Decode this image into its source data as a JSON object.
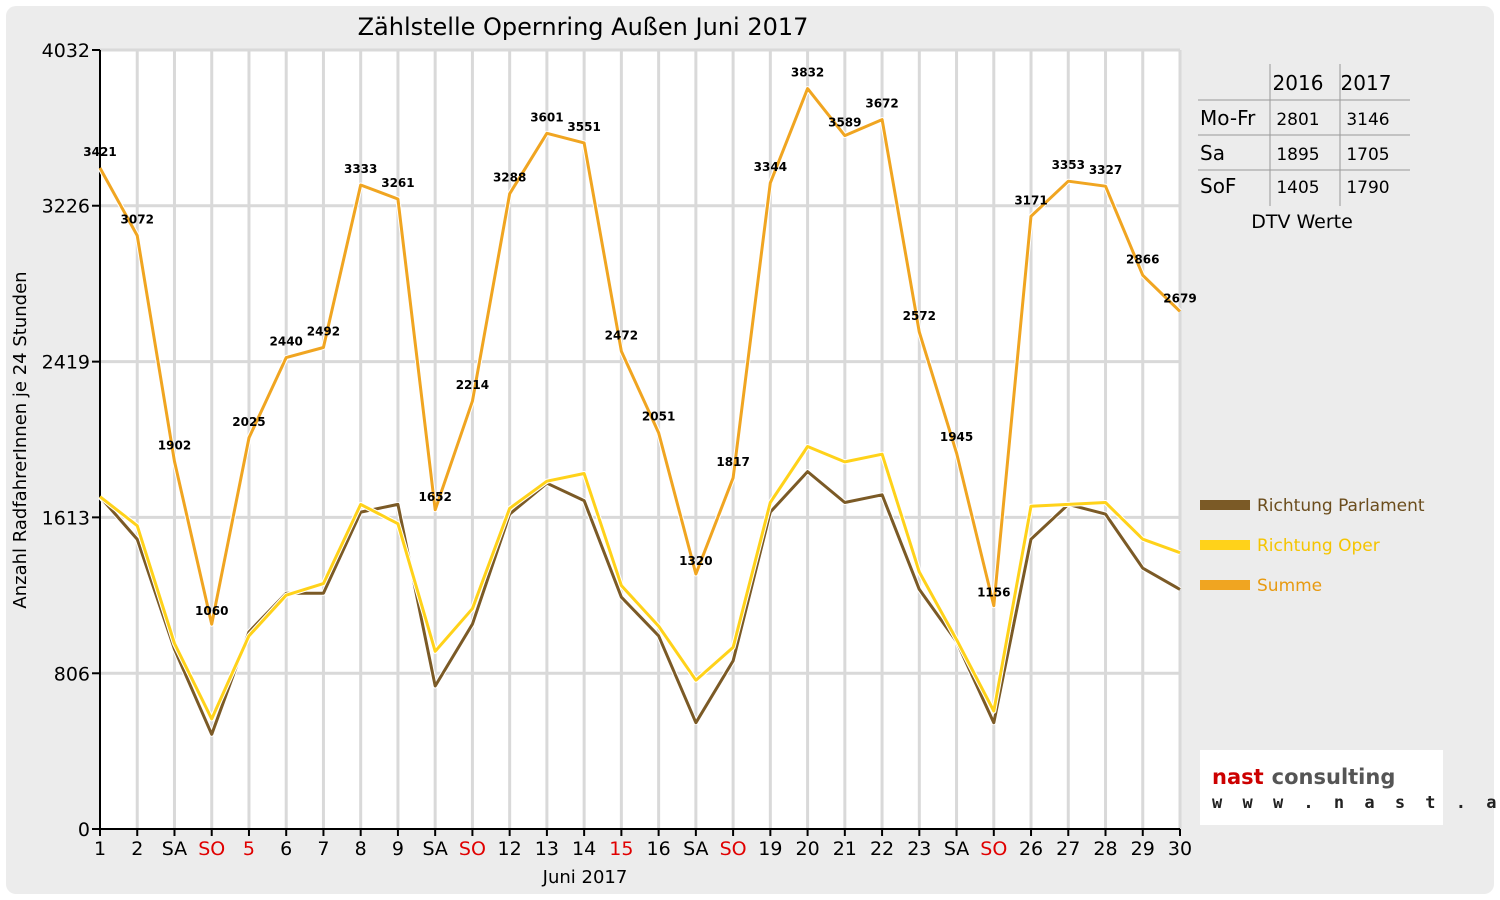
{
  "chart_data": {
    "type": "line",
    "title": "Zählstelle Opernring Außen Juni 2017",
    "xlabel": "Juni 2017",
    "ylabel": "Anzahl RadfahrerInnen je 24 Stunden",
    "yticks": [
      0,
      806,
      1613,
      2419,
      3226,
      4032
    ],
    "ylim": [
      0,
      4032
    ],
    "grid": true,
    "categories": [
      "1",
      "2",
      "SA",
      "SO",
      "5",
      "6",
      "7",
      "8",
      "9",
      "SA",
      "SO",
      "12",
      "13",
      "14",
      "15",
      "16",
      "SA",
      "SO",
      "19",
      "20",
      "21",
      "22",
      "23",
      "SA",
      "SO",
      "26",
      "27",
      "28",
      "29",
      "30"
    ],
    "red_categories": [
      3,
      4,
      10,
      14,
      17,
      24
    ],
    "series": [
      {
        "name": "Richtung Parlament",
        "color": "#7b5a26",
        "values": [
          1720,
          1500,
          930,
          490,
          1020,
          1220,
          1220,
          1640,
          1680,
          740,
          1060,
          1630,
          1790,
          1700,
          1200,
          1000,
          550,
          870,
          1640,
          1850,
          1690,
          1730,
          1240,
          970,
          550,
          1500,
          1680,
          1630,
          1350,
          1240
        ]
      },
      {
        "name": "Richtung Oper",
        "color": "#ffd21a",
        "values": [
          1720,
          1570,
          960,
          570,
          1000,
          1210,
          1270,
          1680,
          1580,
          920,
          1140,
          1660,
          1800,
          1840,
          1260,
          1050,
          770,
          940,
          1690,
          1980,
          1900,
          1940,
          1330,
          980,
          610,
          1670,
          1680,
          1690,
          1500,
          1430
        ]
      },
      {
        "name": "Summe",
        "color": "#f0a521",
        "values": [
          3421,
          3072,
          1902,
          1060,
          2025,
          2440,
          2492,
          3333,
          3261,
          1652,
          2214,
          3288,
          3601,
          3551,
          2472,
          2051,
          1320,
          1817,
          3344,
          3832,
          3589,
          3672,
          2572,
          1945,
          1156,
          3171,
          3353,
          3327,
          2866,
          2679
        ]
      }
    ],
    "legend_position": "right",
    "data_labels_series": "Summe"
  },
  "dtv_table": {
    "caption": "DTV Werte",
    "headers": [
      "",
      "2016",
      "2017"
    ],
    "rows": [
      [
        "Mo-Fr",
        "2801",
        "3146"
      ],
      [
        "Sa",
        "1895",
        "1705"
      ],
      [
        "SoF",
        "1405",
        "1790"
      ]
    ]
  },
  "logo": {
    "name_part1": "nast",
    "name_part2": "consulting",
    "url": "w w w . n a s t . a t",
    "color1": "#cc0000",
    "color2": "#555555"
  }
}
